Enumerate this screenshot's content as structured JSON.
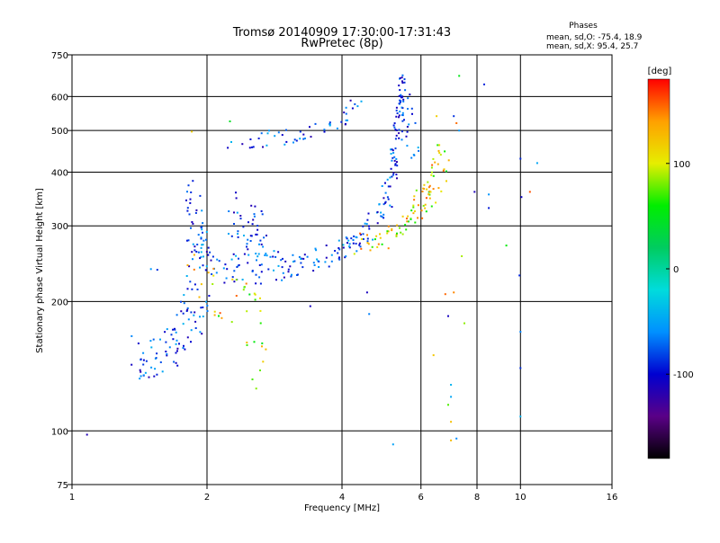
{
  "chart_data": {
    "type": "scatter",
    "title": "Tromsø 20140909 17:30:00-17:31:43",
    "subtitle": "RwPretec (8p)",
    "stats": {
      "heading": "Phases",
      "line_o": "mean, sd,O: -75.4, 18.9",
      "line_x": "mean, sd,X: 95.4, 25.7"
    },
    "xlabel": "Frequency [MHz]",
    "ylabel": "Stationary phase Virtual Height [km]",
    "x_scale": "log",
    "y_scale": "log",
    "xlim": [
      1,
      16
    ],
    "ylim": [
      75,
      750
    ],
    "x_ticks": [
      {
        "value": 1,
        "label": "1"
      },
      {
        "value": 2,
        "label": "2"
      },
      {
        "value": 4,
        "label": "4"
      },
      {
        "value": 6,
        "label": "6"
      },
      {
        "value": 8,
        "label": "8"
      },
      {
        "value": 10,
        "label": "10"
      },
      {
        "value": 16,
        "label": "16"
      }
    ],
    "y_ticks": [
      {
        "value": 75,
        "label": "75"
      },
      {
        "value": 100,
        "label": "100"
      },
      {
        "value": 200,
        "label": "200"
      },
      {
        "value": 300,
        "label": "300"
      },
      {
        "value": 400,
        "label": "400"
      },
      {
        "value": 500,
        "label": "500"
      },
      {
        "value": 600,
        "label": "600"
      },
      {
        "value": 750,
        "label": "750"
      }
    ],
    "grid_x": [
      2,
      4,
      6,
      8,
      10
    ],
    "grid_y": [
      100,
      200,
      300,
      400,
      500,
      600
    ],
    "colorbar": {
      "label": "[deg]",
      "range": [
        -180,
        180
      ],
      "ticks": [
        {
          "value": 100,
          "label": "100"
        },
        {
          "value": 0,
          "label": "0"
        },
        {
          "value": -100,
          "label": "-100"
        }
      ],
      "colormap": [
        "#000000",
        "#5a0087",
        "#0000d0",
        "#0090ff",
        "#00dcdc",
        "#00cc60",
        "#00ee00",
        "#e6ee00",
        "#ffa000",
        "#ff0000"
      ]
    },
    "series": [
      {
        "label_role": "o_trace_and_f_region",
        "phase_range": [
          -120,
          -40
        ],
        "segments": [
          {
            "f": [
              1.38,
              1.55,
              1.7,
              1.85,
              1.95
            ],
            "h": [
              150,
              145,
              160,
              185,
              210
            ],
            "n": 90,
            "jf": 0.03,
            "jh": 0.05
          },
          {
            "f": [
              1.85,
              1.9,
              1.95
            ],
            "h": [
              370,
              300,
              260
            ],
            "n": 35,
            "jf": 0.015,
            "jh": 0.04
          },
          {
            "f": [
              1.85,
              2.0,
              2.3,
              2.6,
              2.9
            ],
            "h": [
              265,
              245,
              240,
              238,
              240
            ],
            "n": 70,
            "jf": 0.02,
            "jh": 0.04
          },
          {
            "f": [
              2.35,
              2.5,
              2.7
            ],
            "h": [
              320,
              300,
              280
            ],
            "n": 45,
            "jf": 0.03,
            "jh": 0.05
          },
          {
            "f": [
              2.9,
              3.3,
              3.8,
              4.2,
              4.6,
              5.0,
              5.2,
              5.35
            ],
            "h": [
              240,
              245,
              258,
              272,
              292,
              340,
              400,
              480
            ],
            "n": 130,
            "jf": 0.012,
            "jh": 0.025
          },
          {
            "f": [
              5.3,
              5.38,
              5.43,
              5.47
            ],
            "h": [
              480,
              560,
              620,
              640
            ],
            "n": 40,
            "jf": 0.008,
            "jh": 0.03
          },
          {
            "f": [
              2.3,
              2.8,
              3.3,
              3.9,
              4.4
            ],
            "h": [
              475,
              480,
              495,
              515,
              595
            ],
            "n": 50,
            "jf": 0.015,
            "jh": 0.02
          },
          {
            "f": [
              5.4,
              5.6,
              5.8
            ],
            "h": [
              610,
              520,
              450
            ],
            "n": 25,
            "jf": 0.02,
            "jh": 0.05
          }
        ],
        "isolated_points": [
          {
            "x": 1.08,
            "y": 98
          },
          {
            "x": 1.5,
            "y": 238
          },
          {
            "x": 1.55,
            "y": 237
          },
          {
            "x": 3.4,
            "y": 195
          },
          {
            "x": 4.55,
            "y": 210
          },
          {
            "x": 4.6,
            "y": 187
          },
          {
            "x": 5.2,
            "y": 93
          },
          {
            "x": 7.2,
            "y": 96
          },
          {
            "x": 8.5,
            "y": 355
          },
          {
            "x": 8.5,
            "y": 330
          },
          {
            "x": 7.9,
            "y": 360
          },
          {
            "x": 10.0,
            "y": 108
          },
          {
            "x": 10.0,
            "y": 140
          },
          {
            "x": 10.0,
            "y": 170
          },
          {
            "x": 9.95,
            "y": 230
          },
          {
            "x": 10.05,
            "y": 350
          },
          {
            "x": 10.9,
            "y": 420
          },
          {
            "x": 7.0,
            "y": 128
          },
          {
            "x": 7.0,
            "y": 120
          },
          {
            "x": 8.3,
            "y": 640
          },
          {
            "x": 7.3,
            "y": 500
          },
          {
            "x": 6.9,
            "y": 185
          },
          {
            "x": 7.1,
            "y": 540
          },
          {
            "x": 10.0,
            "y": 430
          }
        ]
      },
      {
        "label_role": "x_trace",
        "phase_range": [
          40,
          160
        ],
        "segments": [
          {
            "f": [
              4.3,
              4.8,
              5.3,
              5.7,
              6.1
            ],
            "h": [
              270,
              278,
              290,
              315,
              345
            ],
            "n": 50,
            "jf": 0.015,
            "jh": 0.025
          },
          {
            "f": [
              5.9,
              6.2,
              6.5,
              6.8
            ],
            "h": [
              330,
              370,
              400,
              430
            ],
            "n": 45,
            "jf": 0.02,
            "jh": 0.04
          },
          {
            "f": [
              1.9,
              2.1,
              2.4,
              2.6
            ],
            "h": [
              225,
              210,
              195,
              190
            ],
            "n": 30,
            "jf": 0.03,
            "jh": 0.06
          },
          {
            "f": [
              2.4,
              2.7
            ],
            "h": [
              150,
              135
            ],
            "n": 10,
            "jf": 0.03,
            "jh": 0.05
          }
        ],
        "isolated_points": [
          {
            "x": 7.0,
            "y": 105
          },
          {
            "x": 7.0,
            "y": 95
          },
          {
            "x": 7.3,
            "y": 670
          },
          {
            "x": 6.9,
            "y": 115
          },
          {
            "x": 7.1,
            "y": 210
          },
          {
            "x": 7.4,
            "y": 255
          },
          {
            "x": 7.5,
            "y": 178
          },
          {
            "x": 6.5,
            "y": 540
          },
          {
            "x": 9.3,
            "y": 270
          },
          {
            "x": 10.5,
            "y": 360
          },
          {
            "x": 6.8,
            "y": 208
          },
          {
            "x": 2.25,
            "y": 525
          },
          {
            "x": 1.85,
            "y": 497
          },
          {
            "x": 6.4,
            "y": 150
          },
          {
            "x": 7.2,
            "y": 520
          }
        ]
      }
    ]
  }
}
